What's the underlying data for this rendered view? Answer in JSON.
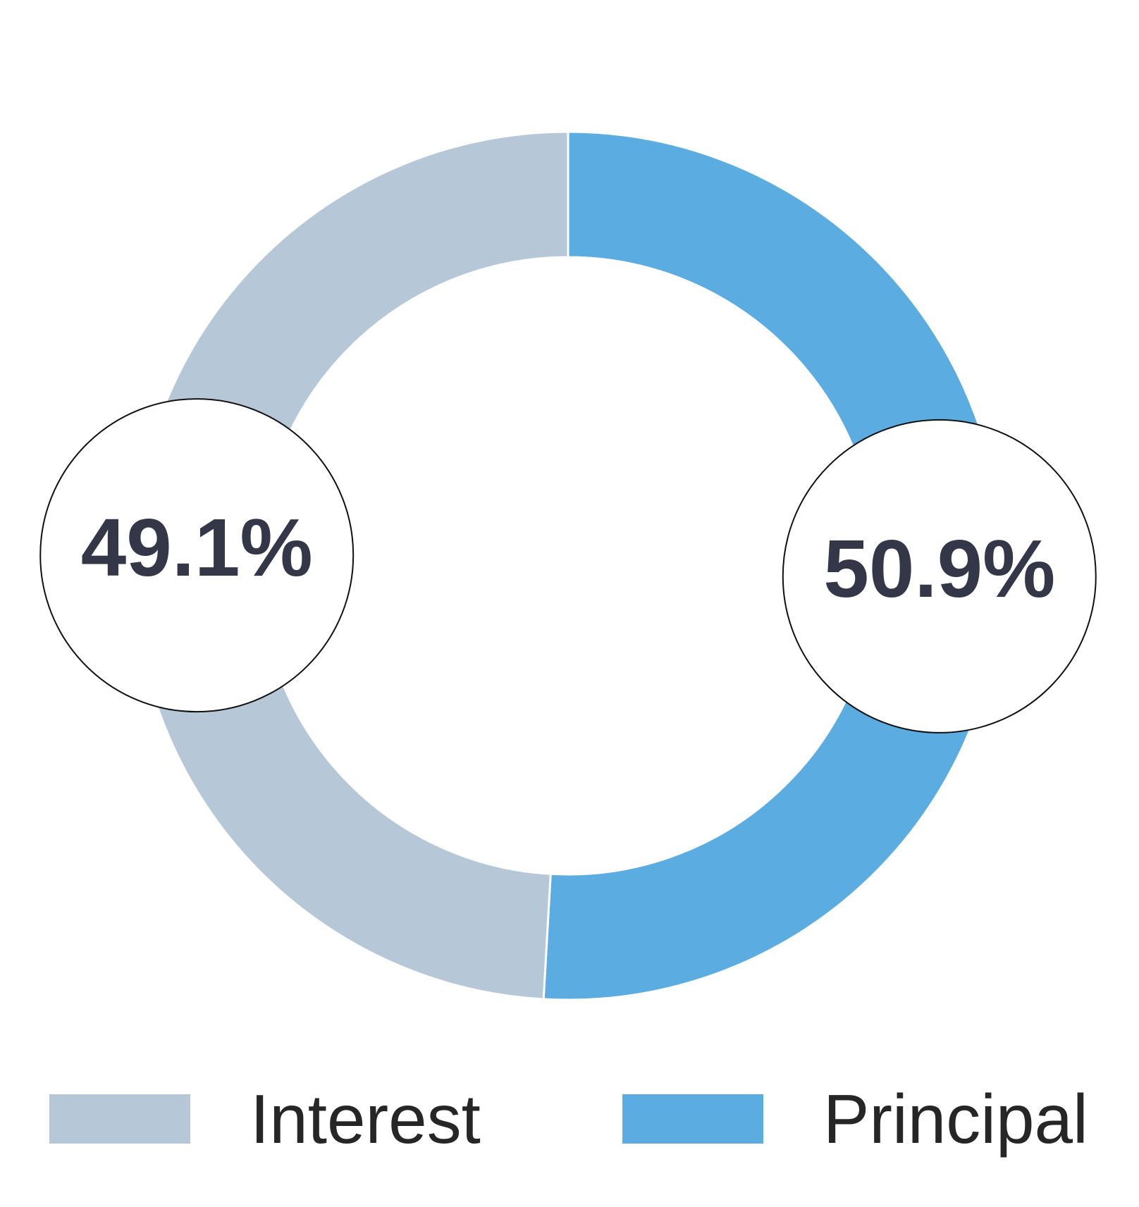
{
  "chart_data": {
    "type": "pie",
    "variant": "donut",
    "title": "",
    "categories": [
      "Interest",
      "Principal"
    ],
    "values": [
      49.1,
      50.9
    ],
    "unit": "%",
    "start_angle": "top",
    "direction": "clockwise",
    "legend_position": "bottom",
    "segments": [
      {
        "label": "Principal",
        "value": 50.9,
        "pct_label": "50.9%",
        "color": "#5bace0"
      },
      {
        "label": "Interest",
        "value": 49.1,
        "pct_label": "49.1%",
        "color": "#b6c7d8"
      }
    ],
    "pct_label_color": "#333747",
    "badge_fill": "#ffffff",
    "badge_border": "#111111",
    "segment_gap_color": "#ffffff"
  },
  "legend": {
    "items": [
      {
        "label": "Interest",
        "color": "#b6c7d8"
      },
      {
        "label": "Principal",
        "color": "#5bace0"
      }
    ]
  }
}
